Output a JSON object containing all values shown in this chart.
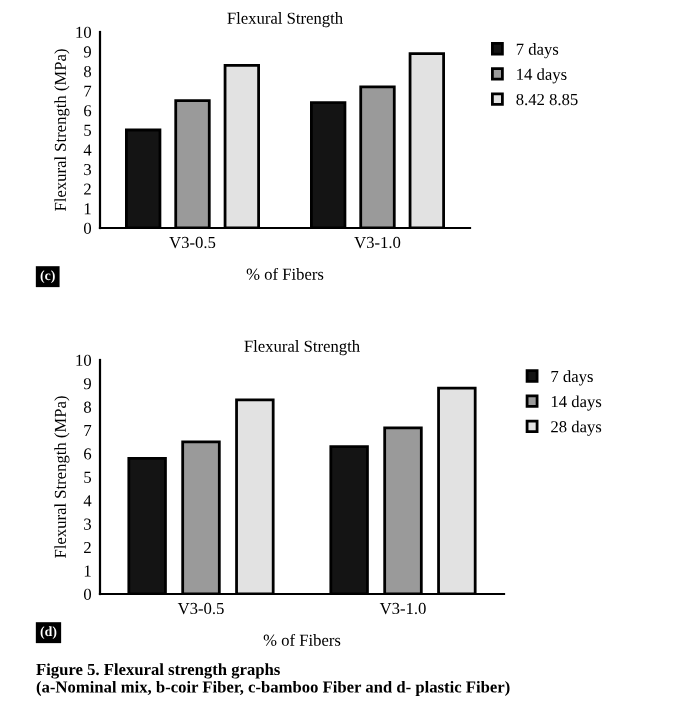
{
  "chart_data": [
    {
      "type": "bar",
      "title": "Flexural Strength",
      "xlabel": "% of Fibers",
      "ylabel": "Flexural Strength (MPa)",
      "categories": [
        "V3-0.5",
        "V3-1.0"
      ],
      "series": [
        {
          "name": "7 days",
          "color": "#141414",
          "values": [
            5.0,
            6.4
          ]
        },
        {
          "name": "14 days",
          "color": "#9a9a9a",
          "values": [
            6.5,
            7.2
          ]
        },
        {
          "name": "8.42 8.85",
          "color": "#e2e2e2",
          "values": [
            8.3,
            8.9
          ]
        }
      ],
      "ylim": [
        0,
        10
      ],
      "yticks": [
        0,
        1,
        2,
        3,
        4,
        5,
        6,
        7,
        8,
        9,
        10
      ],
      "legend": "top right",
      "annotations": [
        "(c)"
      ]
    },
    {
      "type": "bar",
      "title": "Flexural Strength",
      "xlabel": "% of Fibers",
      "ylabel": "Flexural Strength (MPa)",
      "categories": [
        "V3-0.5",
        "V3-1.0"
      ],
      "series": [
        {
          "name": "7 days",
          "color": "#141414",
          "values": [
            5.8,
            6.3
          ]
        },
        {
          "name": "14 days",
          "color": "#9a9a9a",
          "values": [
            6.5,
            7.1
          ]
        },
        {
          "name": "28 days",
          "color": "#e2e2e2",
          "values": [
            8.3,
            8.8
          ]
        }
      ],
      "ylim": [
        0,
        10
      ],
      "yticks": [
        0,
        1,
        2,
        3,
        4,
        5,
        6,
        7,
        8,
        9,
        10
      ],
      "legend": "top right",
      "annotations": [
        "(d)",
        "Figure 5. Flexural strength graphs\n(a-Nominal mix, b-coir Fiber, c-bamboo Fiber and d- plastic Fiber)"
      ]
    }
  ]
}
